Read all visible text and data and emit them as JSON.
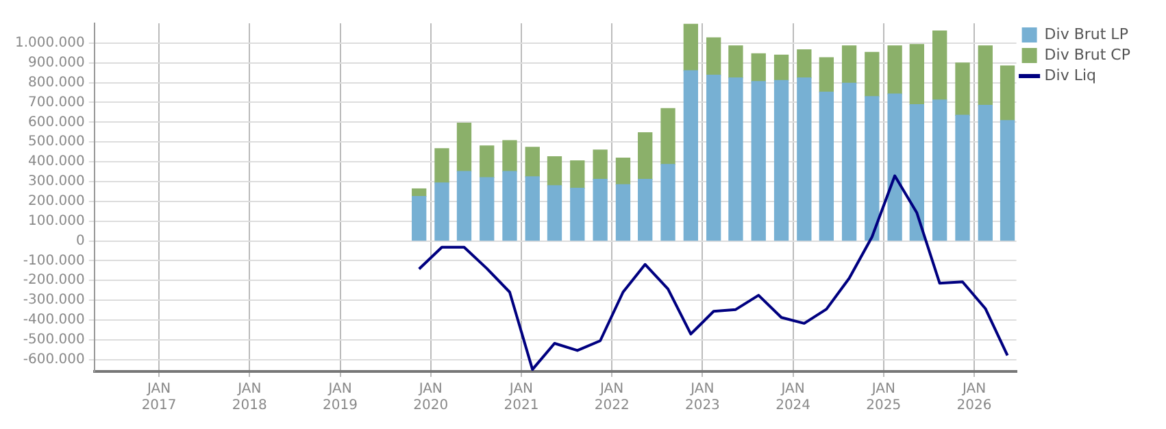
{
  "chart_data": {
    "type": "bar",
    "stacked": true,
    "x": [
      "2019-11-15",
      "2020-02-15",
      "2020-05-15",
      "2020-08-15",
      "2020-11-15",
      "2021-02-15",
      "2021-05-15",
      "2021-08-15",
      "2021-11-15",
      "2022-02-15",
      "2022-05-15",
      "2022-08-15",
      "2022-11-15",
      "2023-02-15",
      "2023-05-15",
      "2023-08-15",
      "2023-11-15",
      "2024-02-15",
      "2024-05-15",
      "2024-08-15",
      "2024-11-15",
      "2025-02-15",
      "2025-05-15",
      "2025-08-15",
      "2025-11-15",
      "2026-02-15",
      "2026-05-15"
    ],
    "series": [
      {
        "name": "Div Brut LP",
        "color": "#77b0d3",
        "values": [
          225000,
          293000,
          351000,
          320000,
          351000,
          324000,
          279000,
          266000,
          311000,
          284000,
          311000,
          387000,
          860000,
          838000,
          824000,
          806000,
          811000,
          824000,
          752000,
          797000,
          730000,
          743000,
          689000,
          712000,
          635000,
          685000,
          608000
        ]
      },
      {
        "name": "Div Brut CP",
        "color": "#8bb06a",
        "values": [
          38000,
          173000,
          244000,
          160000,
          156000,
          149000,
          147000,
          139000,
          148000,
          135000,
          236000,
          282000,
          235000,
          189000,
          162000,
          140000,
          128000,
          142000,
          174000,
          189000,
          223000,
          243000,
          304000,
          349000,
          264000,
          301000,
          277000
        ]
      },
      {
        "name": "Div Liq",
        "type": "line",
        "color": "#000080",
        "values": [
          -142000,
          -32000,
          -32000,
          -140000,
          -259000,
          -650000,
          -518000,
          -554000,
          -505000,
          -259000,
          -119000,
          -243000,
          -471000,
          -356000,
          -347000,
          -275000,
          -387000,
          -417000,
          -345000,
          -189000,
          20000,
          329000,
          142000,
          -214000,
          -207000,
          -342000,
          -579000
        ]
      }
    ],
    "xlim": [
      "2016-04-15",
      "2026-06-20"
    ],
    "xticks": [
      {
        "value": "2017-01-01",
        "label": "JAN\n2017"
      },
      {
        "value": "2018-01-01",
        "label": "JAN\n2018"
      },
      {
        "value": "2019-01-01",
        "label": "JAN\n2019"
      },
      {
        "value": "2020-01-01",
        "label": "JAN\n2020"
      },
      {
        "value": "2021-01-01",
        "label": "JAN\n2021"
      },
      {
        "value": "2022-01-01",
        "label": "JAN\n2022"
      },
      {
        "value": "2023-01-01",
        "label": "JAN\n2023"
      },
      {
        "value": "2024-01-01",
        "label": "JAN\n2024"
      },
      {
        "value": "2025-01-01",
        "label": "JAN\n2025"
      },
      {
        "value": "2026-01-01",
        "label": "JAN\n2026"
      }
    ],
    "ylim": [
      -660000,
      1100000
    ],
    "yticks": [
      {
        "value": -600000,
        "label": "-600.000"
      },
      {
        "value": -500000,
        "label": "-500.000"
      },
      {
        "value": -400000,
        "label": "-400.000"
      },
      {
        "value": -300000,
        "label": "-300.000"
      },
      {
        "value": -200000,
        "label": "-200.000"
      },
      {
        "value": -100000,
        "label": "-100.000"
      },
      0,
      {
        "value": 100000,
        "label": "100.000"
      },
      {
        "value": 200000,
        "label": "200.000"
      },
      {
        "value": 300000,
        "label": "300.000"
      },
      {
        "value": 400000,
        "label": "400.000"
      },
      {
        "value": 500000,
        "label": "500.000"
      },
      {
        "value": 600000,
        "label": "600.000"
      },
      {
        "value": 700000,
        "label": "700.000"
      },
      {
        "value": 800000,
        "label": "800.000"
      },
      {
        "value": 900000,
        "label": "900.000"
      },
      {
        "value": 1000000,
        "label": "1.000.000"
      }
    ],
    "grid": true,
    "legend": "top right",
    "marker": "none",
    "line_style": "solid"
  }
}
